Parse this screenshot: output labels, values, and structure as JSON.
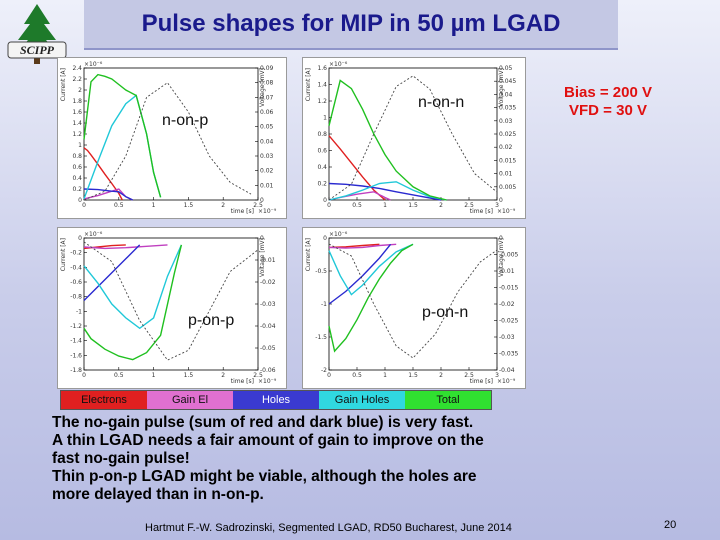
{
  "slide": {
    "title": "Pulse shapes for MIP in 50 µm LGAD",
    "logo_text": "SCIPP",
    "bias_line1": "Bias = 200 V",
    "bias_line2": "VFD = 30 V",
    "body_lines": [
      "The no-gain pulse (sum of red and dark blue) is very fast.",
      "A thin LGAD needs a fair amount of gain to improve on the",
      "fast no-gain pulse!",
      "Thin p-on-p LGAD might be viable, although the holes are",
      "more delayed than in n-on-p."
    ],
    "footer": "Hartmut F.-W. Sadrozinski, Segmented LGAD, RD50 Bucharest, June 2014",
    "page_number": "20"
  },
  "legend": [
    {
      "label": "Electrons",
      "color": "#e02020"
    },
    {
      "label": "Gain El",
      "color": "#e070d0"
    },
    {
      "label": "Holes",
      "color": "#3a3ad0"
    },
    {
      "label": "Gain Holes",
      "color": "#30d8e0"
    },
    {
      "label": "Total",
      "color": "#30e030"
    }
  ],
  "chart_data": [
    {
      "type": "line",
      "title": "n-on-p",
      "xlabel": "time [s]",
      "ylabel": "Current [A]",
      "y2label": "Voltage [mV]",
      "x_ticks": [
        "0",
        "0.5",
        "1",
        "1.5",
        "2",
        "2.5"
      ],
      "y_ticks": [
        "2.4",
        "2.2",
        "2",
        "1.8",
        "1.6",
        "1.4",
        "1.2",
        "1",
        "0.8",
        "0.6",
        "0.4",
        "0.2",
        "0"
      ],
      "y2_ticks": [
        "0.09",
        "0.08",
        "0.07",
        "0.06",
        "0.05",
        "0.04",
        "0.03",
        "0.02",
        "0.01",
        "0"
      ],
      "x_scale": "×10⁻⁹",
      "y_scale": "×10⁻⁶",
      "xlim": [
        0,
        2.5
      ],
      "ylim": [
        0,
        2.4
      ],
      "y2lim": [
        0,
        0.09
      ],
      "series": [
        {
          "name": "Electrons",
          "x": [
            0,
            0.05,
            0.1,
            0.2,
            0.3,
            0.4,
            0.5,
            0.55
          ],
          "y": [
            0.95,
            0.9,
            0.82,
            0.65,
            0.47,
            0.3,
            0.12,
            0.0
          ]
        },
        {
          "name": "Gain El",
          "x": [
            0,
            0.2,
            0.4,
            0.5,
            0.6,
            0.7
          ],
          "y": [
            0.02,
            0.08,
            0.16,
            0.2,
            0.06,
            0.0
          ]
        },
        {
          "name": "Holes",
          "x": [
            0,
            0.2,
            0.4,
            0.5,
            0.6,
            0.7
          ],
          "y": [
            0.2,
            0.19,
            0.16,
            0.15,
            0.06,
            0.0
          ]
        },
        {
          "name": "Gain Holes",
          "x": [
            0,
            0.2,
            0.4,
            0.6,
            0.75,
            0.9,
            1.0,
            1.1
          ],
          "y": [
            0.02,
            0.7,
            1.35,
            1.75,
            1.9,
            1.2,
            0.5,
            0.05
          ]
        },
        {
          "name": "Total",
          "x": [
            0,
            0.1,
            0.2,
            0.3,
            0.4,
            0.5,
            0.6,
            0.75,
            0.9,
            1.0,
            1.1
          ],
          "y": [
            1.1,
            2.15,
            2.28,
            2.25,
            2.2,
            2.1,
            2.0,
            1.9,
            1.2,
            0.5,
            0.05
          ]
        },
        {
          "name": "Voltage",
          "x": [
            0,
            0.3,
            0.6,
            0.9,
            1.2,
            1.5,
            1.8,
            2.1,
            2.4
          ],
          "y": [
            0,
            0.006,
            0.03,
            0.07,
            0.08,
            0.06,
            0.03,
            0.012,
            0.004
          ]
        }
      ]
    },
    {
      "type": "line",
      "title": "n-on-n",
      "xlabel": "time [s]",
      "ylabel": "Current [A]",
      "y2label": "Voltage [mV]",
      "x_ticks": [
        "0",
        "0.5",
        "1",
        "1.5",
        "2",
        "2.5",
        "3"
      ],
      "y_ticks": [
        "1.6",
        "1.4",
        "1.2",
        "1",
        "0.8",
        "0.6",
        "0.4",
        "0.2",
        "0"
      ],
      "y2_ticks": [
        "0.05",
        "0.045",
        "0.04",
        "0.035",
        "0.03",
        "0.025",
        "0.02",
        "0.015",
        "0.01",
        "0.005",
        "0"
      ],
      "x_scale": "×10⁻⁹",
      "y_scale": "×10⁻⁶",
      "xlim": [
        0,
        3
      ],
      "ylim": [
        0,
        1.6
      ],
      "y2lim": [
        0,
        0.05
      ],
      "series": [
        {
          "name": "Electrons",
          "x": [
            0,
            0.2,
            0.4,
            0.6,
            0.8,
            1.0
          ],
          "y": [
            0.78,
            0.62,
            0.45,
            0.28,
            0.12,
            0.0
          ]
        },
        {
          "name": "Gain El",
          "x": [
            0,
            0.2,
            0.5,
            0.8,
            1.0,
            1.1
          ],
          "y": [
            0.0,
            0.03,
            0.07,
            0.1,
            0.03,
            0.0
          ]
        },
        {
          "name": "Holes",
          "x": [
            0,
            0.3,
            0.6,
            0.9,
            1.2,
            1.6,
            2.0
          ],
          "y": [
            0.2,
            0.19,
            0.17,
            0.14,
            0.1,
            0.05,
            0.0
          ]
        },
        {
          "name": "Gain Holes",
          "x": [
            0,
            0.3,
            0.6,
            0.9,
            1.2,
            1.5,
            1.8,
            2.1
          ],
          "y": [
            0.0,
            0.05,
            0.12,
            0.2,
            0.22,
            0.12,
            0.04,
            0.0
          ]
        },
        {
          "name": "Total",
          "x": [
            0,
            0.2,
            0.4,
            0.6,
            0.8,
            1.0,
            1.2,
            1.5,
            1.8,
            2.1
          ],
          "y": [
            0.9,
            1.45,
            1.35,
            1.1,
            0.8,
            0.55,
            0.35,
            0.16,
            0.05,
            0.0
          ]
        },
        {
          "name": "Voltage",
          "x": [
            0,
            0.4,
            0.8,
            1.2,
            1.5,
            1.8,
            2.2,
            2.6,
            3.0
          ],
          "y": [
            0,
            0.006,
            0.025,
            0.043,
            0.047,
            0.042,
            0.025,
            0.01,
            0.003
          ]
        }
      ]
    },
    {
      "type": "line",
      "title": "p-on-p",
      "xlabel": "time [s]",
      "ylabel": "Current [A]",
      "y2label": "Voltage [mV]",
      "x_ticks": [
        "0",
        "0.5",
        "1",
        "1.5",
        "2",
        "2.5"
      ],
      "y_ticks": [
        "0",
        "-0.2",
        "-0.4",
        "-0.6",
        "-0.8",
        "-1",
        "-1.2",
        "-1.4",
        "-1.6",
        "-1.8"
      ],
      "y2_ticks": [
        "0",
        "-0.01",
        "-0.02",
        "-0.03",
        "-0.04",
        "-0.05",
        "-0.06"
      ],
      "x_scale": "×10⁻⁹",
      "y_scale": "×10⁻⁶",
      "xlim": [
        0,
        2.5
      ],
      "ylim": [
        -1.8,
        0.1
      ],
      "y2lim": [
        -0.065,
        0.002
      ],
      "series": [
        {
          "name": "Electrons",
          "x": [
            0,
            0.2,
            0.4,
            0.6
          ],
          "y": [
            -0.05,
            -0.03,
            -0.01,
            0.0
          ]
        },
        {
          "name": "Gain El",
          "x": [
            0,
            0.3,
            0.6,
            0.9,
            1.2
          ],
          "y": [
            -0.03,
            -0.05,
            -0.04,
            -0.02,
            0.0
          ]
        },
        {
          "name": "Holes",
          "x": [
            0,
            0.2,
            0.4,
            0.6,
            0.8
          ],
          "y": [
            -0.8,
            -0.6,
            -0.4,
            -0.2,
            0.0
          ]
        },
        {
          "name": "Gain Holes",
          "x": [
            0,
            0.2,
            0.4,
            0.6,
            0.8,
            1.0,
            1.2,
            1.4
          ],
          "y": [
            -0.3,
            -0.55,
            -0.85,
            -1.05,
            -1.2,
            -1.05,
            -0.45,
            0.0
          ]
        },
        {
          "name": "Total",
          "x": [
            0,
            0.1,
            0.3,
            0.5,
            0.7,
            0.9,
            1.1,
            1.3,
            1.4
          ],
          "y": [
            -1.2,
            -1.35,
            -1.5,
            -1.6,
            -1.65,
            -1.55,
            -1.3,
            -0.4,
            0.0
          ]
        },
        {
          "name": "Voltage",
          "x": [
            0,
            0.4,
            0.8,
            1.2,
            1.5,
            1.8,
            2.1,
            2.5
          ],
          "y": [
            0,
            -0.01,
            -0.04,
            -0.06,
            -0.055,
            -0.035,
            -0.015,
            -0.004
          ]
        }
      ]
    },
    {
      "type": "line",
      "title": "p-on-n",
      "xlabel": "time [s]",
      "ylabel": "Current [A]",
      "y2label": "Voltage [mV]",
      "x_ticks": [
        "0",
        "0.5",
        "1",
        "1.5",
        "2",
        "2.5",
        "3"
      ],
      "y_ticks": [
        "0",
        "-0.5",
        "-1",
        "-1.5",
        "-2"
      ],
      "y2_ticks": [
        "0",
        "-0.005",
        "-0.01",
        "-0.015",
        "-0.02",
        "-0.025",
        "-0.03",
        "-0.035",
        "-0.04"
      ],
      "x_scale": "×10⁻⁹",
      "y_scale": "×10⁻⁶",
      "xlim": [
        0,
        3
      ],
      "ylim": [
        -2,
        0.1
      ],
      "y2lim": [
        -0.042,
        0.002
      ],
      "series": [
        {
          "name": "Electrons",
          "x": [
            0,
            0.3,
            0.6,
            0.9
          ],
          "y": [
            -0.05,
            -0.04,
            -0.02,
            0.0
          ]
        },
        {
          "name": "Gain El",
          "x": [
            0,
            0.3,
            0.6,
            0.9,
            1.2
          ],
          "y": [
            -0.05,
            -0.06,
            -0.05,
            -0.02,
            0.0
          ]
        },
        {
          "name": "Holes",
          "x": [
            0,
            0.3,
            0.6,
            0.9,
            1.1
          ],
          "y": [
            -0.95,
            -0.75,
            -0.5,
            -0.22,
            0.0
          ]
        },
        {
          "name": "Gain Holes",
          "x": [
            0,
            0.2,
            0.4,
            0.6,
            0.9,
            1.2,
            1.5
          ],
          "y": [
            -0.1,
            -0.5,
            -0.8,
            -0.65,
            -0.35,
            -0.12,
            0.0
          ]
        },
        {
          "name": "Total",
          "x": [
            0,
            0.1,
            0.3,
            0.5,
            0.7,
            0.9,
            1.1,
            1.3,
            1.5
          ],
          "y": [
            -1.3,
            -1.7,
            -1.5,
            -1.2,
            -0.85,
            -0.55,
            -0.3,
            -0.1,
            0.0
          ]
        },
        {
          "name": "Voltage",
          "x": [
            0,
            0.4,
            0.8,
            1.2,
            1.5,
            1.9,
            2.3,
            2.7,
            3.0
          ],
          "y": [
            0,
            -0.004,
            -0.02,
            -0.034,
            -0.038,
            -0.03,
            -0.016,
            -0.006,
            -0.002
          ]
        }
      ]
    }
  ]
}
